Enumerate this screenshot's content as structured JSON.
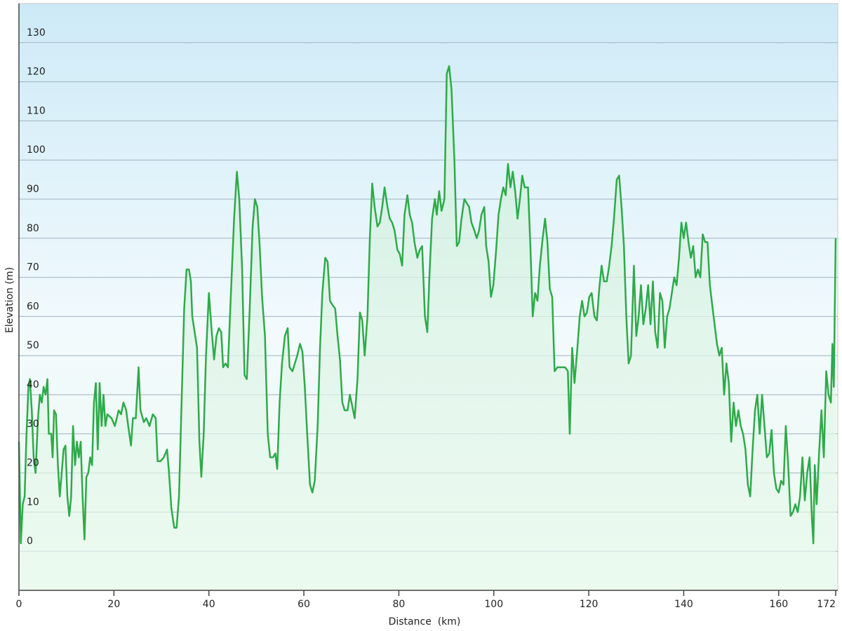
{
  "chart_data": {
    "type": "line",
    "x_label": "Distance  (km)",
    "y_label": "Elevation (m)",
    "color": "#2eaa4a",
    "grid": true,
    "fill_area": true,
    "xlim": [
      0,
      172
    ],
    "xticks": [
      0,
      20,
      40,
      60,
      80,
      100,
      120,
      140,
      160,
      172
    ],
    "ylim": [
      -10,
      140
    ],
    "yticks": [
      0,
      10,
      20,
      30,
      40,
      50,
      60,
      70,
      80,
      90,
      100,
      110,
      120,
      130
    ],
    "x": [
      0,
      0.4,
      0.8,
      1.2,
      1.6,
      2,
      2.3,
      2.7,
      3.1,
      3.5,
      4,
      4.4,
      4.8,
      5.2,
      5.6,
      6,
      6.3,
      6.8,
      7.1,
      7.4,
      7.8,
      8.2,
      8.6,
      9,
      9.4,
      9.8,
      10.2,
      10.6,
      11,
      11.4,
      11.8,
      12.2,
      12.6,
      13,
      13.4,
      13.8,
      14.2,
      14.6,
      15,
      15.4,
      15.8,
      16.2,
      16.6,
      17,
      17.4,
      17.8,
      18.2,
      18.6,
      19.5,
      20.2,
      21,
      21.5,
      22,
      22.6,
      23,
      23.6,
      24,
      24.6,
      25.2,
      25.6,
      26.3,
      26.8,
      27.5,
      28.2,
      28.8,
      29.2,
      29.8,
      30.5,
      31.2,
      31.6,
      32.1,
      32.7,
      33.2,
      33.7,
      34.3,
      34.8,
      35.3,
      35.8,
      36.2,
      36.5,
      37,
      37.5,
      38,
      38.4,
      38.9,
      39.4,
      40,
      40.6,
      41.1,
      41.6,
      42.1,
      42.6,
      43,
      43.5,
      44,
      44.5,
      45.3,
      45.9,
      46.4,
      47,
      47.5,
      48,
      48.6,
      49.2,
      49.7,
      50.2,
      50.7,
      51.2,
      51.8,
      52.4,
      52.9,
      53.5,
      54,
      54.4,
      54.9,
      55.4,
      56,
      56.6,
      57,
      57.6,
      58.1,
      58.6,
      59.2,
      59.7,
      60.2,
      60.7,
      61.3,
      61.8,
      62.3,
      62.9,
      63.4,
      63.9,
      64.5,
      65,
      65.5,
      66,
      66.6,
      67.1,
      67.6,
      68.1,
      68.6,
      69.2,
      69.7,
      70.2,
      70.7,
      71.3,
      71.8,
      72.3,
      72.8,
      73.4,
      73.9,
      74.4,
      74.9,
      75.5,
      76,
      76.5,
      77,
      77.6,
      78.1,
      78.6,
      79.1,
      79.7,
      80.2,
      80.7,
      81.2,
      81.8,
      82.3,
      82.8,
      83.3,
      83.9,
      84.4,
      84.9,
      85.5,
      86,
      86.5,
      87,
      87.6,
      88,
      88.5,
      89,
      89.6,
      90.1,
      90.6,
      91.1,
      91.7,
      92.2,
      92.7,
      93.2,
      93.8,
      94.3,
      94.8,
      95.3,
      95.9,
      96.4,
      96.9,
      97.4,
      98,
      98.4,
      98.9,
      99.4,
      99.9,
      100.5,
      101,
      101.5,
      102,
      102.5,
      103,
      103.5,
      104,
      104.5,
      105,
      105.5,
      106,
      106.5,
      107.2,
      107.7,
      108.2,
      108.7,
      109.2,
      109.7,
      110.3,
      110.8,
      111.3,
      111.8,
      112.3,
      112.8,
      113.4,
      114,
      115,
      115.6,
      116,
      116.5,
      117,
      117.6,
      118.1,
      118.6,
      119.1,
      119.6,
      120.1,
      120.6,
      121.2,
      121.7,
      122.2,
      122.7,
      123.2,
      123.8,
      124.3,
      124.8,
      125.3,
      125.9,
      126.4,
      126.9,
      127.4,
      127.9,
      128.4,
      128.9,
      129.5,
      130,
      130.5,
      131,
      131.5,
      132,
      132.5,
      133,
      133.5,
      134,
      134.5,
      135,
      135.5,
      136,
      136.5,
      137,
      137.5,
      138,
      138.5,
      139,
      139.5,
      140,
      140.5,
      141,
      141.5,
      142,
      142.5,
      143,
      143.5,
      144,
      144.5,
      145,
      145.5,
      146,
      146.5,
      147,
      147.5,
      148,
      148.5,
      149,
      149.5,
      150,
      150.5,
      151,
      151.5,
      152,
      152.5,
      153,
      153.5,
      154,
      154.5,
      155,
      155.5,
      156,
      156.5,
      157,
      157.5,
      158,
      158.5,
      159,
      159.5,
      160,
      160.5,
      161,
      161.5,
      162,
      162.5,
      163,
      163.5,
      164,
      164.5,
      165,
      165.5,
      166,
      166.5,
      167,
      167.3,
      167.6,
      168,
      168.5,
      169,
      169.5,
      170,
      170.5,
      171,
      171.3,
      171.6,
      172
    ],
    "values": [
      28,
      2,
      12,
      14,
      30,
      42,
      44,
      36,
      24,
      20,
      34,
      40,
      38,
      42,
      40,
      44,
      30,
      30,
      24,
      36,
      35,
      22,
      14,
      20,
      26,
      27,
      14,
      9,
      14,
      32,
      22,
      28,
      24,
      28,
      14,
      3,
      19,
      20,
      24,
      22,
      38,
      43,
      26,
      43,
      32,
      40,
      32,
      35,
      34,
      32,
      36,
      35,
      38,
      36,
      32,
      27,
      34,
      34,
      47,
      36,
      33,
      34,
      32,
      35,
      34,
      23,
      23,
      24,
      26,
      20,
      11,
      6,
      6,
      14,
      40,
      62,
      72,
      72,
      69,
      60,
      56,
      52,
      28,
      19,
      30,
      50,
      66,
      56,
      49,
      55,
      57,
      56,
      47,
      48,
      47,
      62,
      85,
      97,
      90,
      72,
      45,
      44,
      62,
      83,
      90,
      88,
      78,
      65,
      55,
      30,
      24,
      24,
      25,
      21,
      38,
      48,
      55,
      57,
      47,
      46,
      48,
      50,
      53,
      51,
      42,
      30,
      17,
      15,
      18,
      32,
      52,
      66,
      75,
      74,
      64,
      63,
      62,
      55,
      49,
      38,
      36,
      36,
      40,
      37,
      34,
      44,
      61,
      59,
      50,
      60,
      80,
      94,
      88,
      83,
      84,
      88,
      93,
      88,
      85,
      84,
      82,
      77,
      76,
      73,
      86,
      91,
      86,
      84,
      79,
      75,
      77,
      78,
      60,
      56,
      72,
      85,
      90,
      86,
      92,
      87,
      90,
      122,
      124,
      118,
      100,
      78,
      79,
      85,
      90,
      89,
      88,
      84,
      82,
      80,
      82,
      86,
      88,
      78,
      74,
      65,
      68,
      77,
      86,
      90,
      93,
      91,
      99,
      93,
      97,
      92,
      85,
      90,
      96,
      93,
      93,
      78,
      60,
      66,
      64,
      73,
      80,
      85,
      79,
      67,
      65,
      46,
      47,
      47,
      47,
      46,
      30,
      52,
      43,
      52,
      60,
      64,
      60,
      61,
      65,
      66,
      60,
      59,
      67,
      73,
      69,
      69,
      73,
      78,
      85,
      95,
      96,
      88,
      78,
      60,
      48,
      50,
      73,
      55,
      60,
      68,
      58,
      62,
      68,
      58,
      69,
      56,
      52,
      66,
      64,
      52,
      60,
      62,
      66,
      70,
      68,
      75,
      84,
      80,
      84,
      79,
      75,
      78,
      70,
      72,
      70,
      81,
      79,
      79,
      68,
      63,
      58,
      53,
      50,
      52,
      40,
      48,
      43,
      28,
      38,
      32,
      36,
      32,
      30,
      26,
      17,
      14,
      26,
      36,
      40,
      30,
      40,
      32,
      24,
      25,
      31,
      20,
      16,
      15,
      18,
      17,
      32,
      22,
      9,
      10,
      12,
      10,
      14,
      24,
      13,
      20,
      24,
      8,
      2,
      22,
      12,
      25,
      36,
      24,
      46,
      40,
      38,
      53,
      42,
      80
    ]
  }
}
